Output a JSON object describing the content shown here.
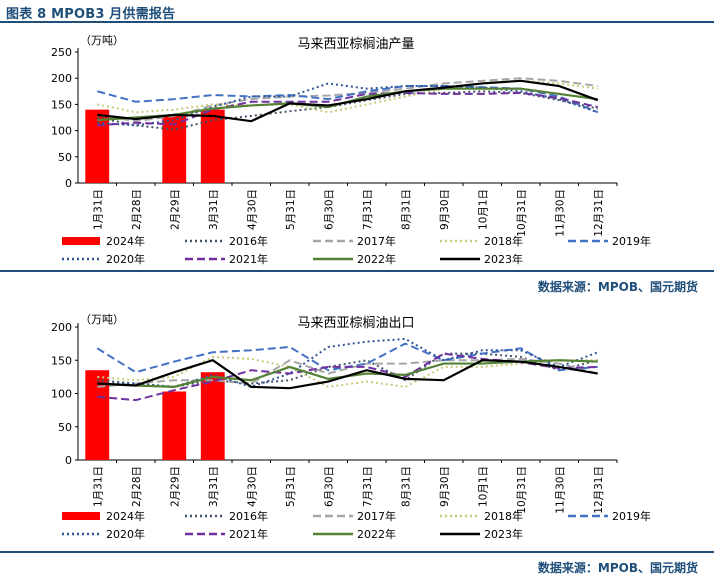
{
  "header": {
    "title": "图表 8 MPOB3 月供需报告"
  },
  "charts": [
    {
      "source": "数据来源：MPOB、国元期货"
    },
    {
      "source": "数据来源：MPOB、国元期货"
    }
  ],
  "chart_data": [
    {
      "type": "bar+line",
      "title": "马来西亚棕榈油产量",
      "ylabel": "（万吨）",
      "ylim": [
        0,
        250
      ],
      "yticks": [
        0,
        50,
        100,
        150,
        200,
        250
      ],
      "categories": [
        "1月31日",
        "2月28日",
        "2月29日",
        "3月31日",
        "4月30日",
        "5月31日",
        "6月30日",
        "7月31日",
        "8月31日",
        "9月30日",
        "10月1日",
        "10月31日",
        "11月30日",
        "12月31日"
      ],
      "bar_series": {
        "name": "2024年",
        "color": "#ff0000",
        "values": [
          140,
          null,
          130,
          140,
          null,
          null,
          null,
          null,
          null,
          null,
          null,
          null,
          null,
          null
        ]
      },
      "series": [
        {
          "name": "2016年",
          "color": "#44546a",
          "style": "dotted",
          "values": [
            125,
            110,
            102,
            120,
            128,
            137,
            145,
            158,
            170,
            172,
            175,
            172,
            158,
            142
          ]
        },
        {
          "name": "2017年",
          "color": "#a6a6a6",
          "style": "dashed",
          "values": [
            130,
            118,
            128,
            148,
            160,
            165,
            167,
            172,
            180,
            190,
            195,
            200,
            195,
            185
          ]
        },
        {
          "name": "2018年",
          "color": "#c9c97a",
          "style": "dotted",
          "values": [
            150,
            135,
            140,
            150,
            148,
            150,
            135,
            150,
            165,
            180,
            190,
            195,
            190,
            180
          ]
        },
        {
          "name": "2019年",
          "color": "#4472c4",
          "style": "dashed",
          "values": [
            175,
            155,
            160,
            168,
            165,
            168,
            160,
            175,
            185,
            185,
            183,
            180,
            165,
            135
          ]
        },
        {
          "name": "2020年",
          "color": "#2f5597",
          "style": "dotted",
          "values": [
            115,
            110,
            120,
            145,
            165,
            165,
            190,
            180,
            185,
            185,
            182,
            175,
            160,
            135
          ]
        },
        {
          "name": "2021年",
          "color": "#7030a0",
          "style": "dashed",
          "values": [
            110,
            115,
            112,
            140,
            155,
            155,
            155,
            170,
            172,
            170,
            170,
            172,
            162,
            145
          ]
        },
        {
          "name": "2022年",
          "color": "#548235",
          "style": "solid",
          "values": [
            120,
            125,
            130,
            142,
            148,
            152,
            145,
            165,
            175,
            180,
            180,
            180,
            170,
            160
          ]
        },
        {
          "name": "2023年",
          "color": "#000000",
          "style": "solid",
          "values": [
            130,
            122,
            130,
            128,
            118,
            152,
            148,
            160,
            175,
            182,
            190,
            195,
            185,
            158
          ]
        }
      ]
    },
    {
      "type": "bar+line",
      "title": "马来西亚棕榈油出口",
      "ylabel": "（万吨）",
      "ylim": [
        0,
        200
      ],
      "yticks": [
        0,
        50,
        100,
        150,
        200
      ],
      "categories": [
        "1月31日",
        "2月28日",
        "2月29日",
        "3月31日",
        "4月30日",
        "5月31日",
        "6月30日",
        "7月31日",
        "8月31日",
        "9月30日",
        "10月1日",
        "10月31日",
        "11月30日",
        "12月31日"
      ],
      "bar_series": {
        "name": "2024年",
        "color": "#ff0000",
        "values": [
          135,
          null,
          103,
          132,
          null,
          null,
          null,
          null,
          null,
          null,
          null,
          null,
          null,
          null
        ]
      },
      "series": [
        {
          "name": "2016年",
          "color": "#44546a",
          "style": "dotted",
          "values": [
            120,
            115,
            110,
            120,
            115,
            120,
            140,
            150,
            120,
            160,
            160,
            155,
            135,
            150
          ]
        },
        {
          "name": "2017年",
          "color": "#a6a6a6",
          "style": "dashed",
          "values": [
            110,
            115,
            120,
            120,
            115,
            150,
            130,
            145,
            145,
            150,
            150,
            152,
            145,
            130
          ]
        },
        {
          "name": "2018年",
          "color": "#c9c97a",
          "style": "dotted",
          "values": [
            125,
            120,
            125,
            155,
            152,
            140,
            110,
            118,
            110,
            140,
            140,
            145,
            150,
            150
          ]
        },
        {
          "name": "2019年",
          "color": "#4472c4",
          "style": "dashed",
          "values": [
            168,
            132,
            148,
            162,
            165,
            170,
            135,
            145,
            175,
            150,
            160,
            168,
            135,
            140
          ]
        },
        {
          "name": "2020年",
          "color": "#2f5597",
          "style": "dotted",
          "values": [
            115,
            115,
            110,
            128,
            110,
            130,
            170,
            178,
            182,
            150,
            165,
            165,
            140,
            162
          ]
        },
        {
          "name": "2021年",
          "color": "#7030a0",
          "style": "dashed",
          "values": [
            95,
            90,
            105,
            118,
            135,
            130,
            140,
            140,
            125,
            160,
            152,
            147,
            138,
            140
          ]
        },
        {
          "name": "2022年",
          "color": "#548235",
          "style": "solid",
          "values": [
            115,
            112,
            110,
            125,
            120,
            140,
            122,
            130,
            128,
            145,
            145,
            148,
            150,
            148
          ]
        },
        {
          "name": "2023年",
          "color": "#000000",
          "style": "solid",
          "values": [
            115,
            112,
            132,
            150,
            110,
            108,
            118,
            135,
            122,
            120,
            150,
            148,
            140,
            130
          ]
        }
      ]
    }
  ]
}
